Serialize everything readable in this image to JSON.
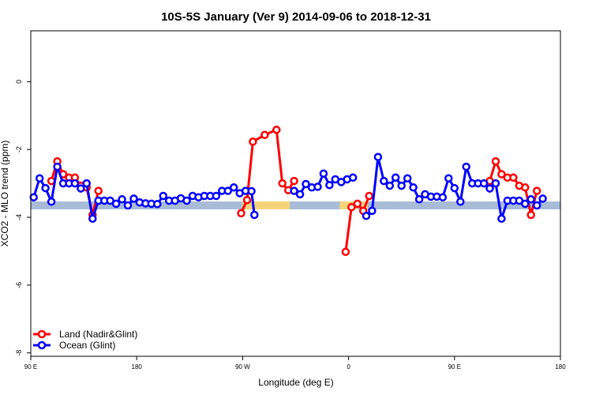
{
  "chart_data": {
    "type": "line",
    "title": "10S-5S January (Ver 9)   2014-09-06 to 2018-12-31",
    "xlabel": "Longitude (deg E)",
    "ylabel": "XCO2 - MLO trend (ppm)",
    "xlim": [
      90,
      450
    ],
    "ylim": [
      -8.1,
      1.5
    ],
    "x_ticks": [
      {
        "value": 90,
        "label": "90 E"
      },
      {
        "value": 162,
        "label": "180"
      },
      {
        "value": 234,
        "label": "90 W"
      },
      {
        "value": 306,
        "label": "0"
      },
      {
        "value": 378,
        "label": "90 E"
      },
      {
        "value": 450,
        "label": "180"
      }
    ],
    "y_ticks": [
      {
        "value": 0,
        "label": "0"
      },
      {
        "value": -2,
        "label": "-2"
      },
      {
        "value": -4,
        "label": "-4"
      },
      {
        "value": -6,
        "label": "-6"
      },
      {
        "value": -8,
        "label": "-8"
      }
    ],
    "legend": {
      "position": "bottom-left",
      "entries": [
        {
          "label": "Land (Nadir&Glint)",
          "color": "#ff0000"
        },
        {
          "label": "Ocean (Glint)",
          "color": "#0000ff"
        }
      ]
    },
    "band": {
      "y": -3.65,
      "color": "#a8bcd8",
      "land_segments": [
        [
          234,
          266
        ],
        [
          300,
          312
        ],
        [
          315,
          319
        ]
      ],
      "land_color": "#f5d47a"
    },
    "series": [
      {
        "name": "Land (Nadir&Glint)",
        "color": "#ff0000",
        "segments": [
          [
            [
              104,
              -2.93
            ],
            [
              108,
              -2.35
            ],
            [
              112,
              -2.73
            ],
            [
              116,
              -2.83
            ],
            [
              120,
              -2.83
            ],
            [
              124,
              -3.07
            ],
            [
              128,
              -3.12
            ],
            [
              132,
              -3.93
            ],
            [
              136,
              -3.22
            ]
          ],
          [
            [
              233,
              -3.88
            ],
            [
              237,
              -3.49
            ],
            [
              241,
              -1.77
            ],
            [
              249,
              -1.57
            ],
            [
              257,
              -1.42
            ],
            [
              261,
              -3.0
            ],
            [
              265,
              -3.2
            ],
            [
              269,
              -2.93
            ]
          ],
          [
            [
              304,
              -5.02
            ],
            [
              308,
              -3.7
            ],
            [
              312,
              -3.6
            ],
            [
              316,
              -3.81
            ],
            [
              320,
              -3.37
            ]
          ],
          [
            [
              402,
              -2.93
            ],
            [
              406,
              -2.35
            ],
            [
              410,
              -2.73
            ],
            [
              414,
              -2.83
            ],
            [
              418,
              -2.83
            ],
            [
              422,
              -3.07
            ],
            [
              426,
              -3.12
            ],
            [
              430,
              -3.93
            ],
            [
              434,
              -3.22
            ]
          ]
        ]
      },
      {
        "name": "Ocean (Glint)",
        "color": "#0000ff",
        "segments": [
          [
            [
              92,
              -3.41
            ],
            [
              96,
              -2.85
            ],
            [
              100,
              -3.14
            ],
            [
              104,
              -3.54
            ],
            [
              108,
              -2.51
            ],
            [
              112,
              -3.0
            ],
            [
              116,
              -3.0
            ],
            [
              120,
              -3.0
            ],
            [
              124,
              -3.15
            ],
            [
              128,
              -3.0
            ],
            [
              132,
              -4.04
            ],
            [
              136,
              -3.51
            ],
            [
              140,
              -3.51
            ],
            [
              144,
              -3.51
            ],
            [
              148,
              -3.6
            ],
            [
              152,
              -3.47
            ],
            [
              156,
              -3.65
            ],
            [
              160,
              -3.45
            ],
            [
              164,
              -3.56
            ],
            [
              168,
              -3.59
            ],
            [
              172,
              -3.6
            ],
            [
              176,
              -3.61
            ],
            [
              180,
              -3.37
            ],
            [
              184,
              -3.51
            ],
            [
              188,
              -3.51
            ],
            [
              192,
              -3.44
            ],
            [
              196,
              -3.51
            ],
            [
              200,
              -3.37
            ],
            [
              204,
              -3.41
            ],
            [
              208,
              -3.37
            ],
            [
              212,
              -3.37
            ],
            [
              216,
              -3.37
            ],
            [
              220,
              -3.22
            ],
            [
              224,
              -3.22
            ],
            [
              228,
              -3.12
            ],
            [
              232,
              -3.29
            ],
            [
              236,
              -3.22
            ],
            [
              240,
              -3.23
            ],
            [
              242,
              -3.93
            ]
          ],
          [
            [
              269,
              -3.22
            ],
            [
              273,
              -3.32
            ],
            [
              277,
              -3.02
            ],
            [
              281,
              -3.12
            ],
            [
              285,
              -3.1
            ],
            [
              289,
              -2.71
            ],
            [
              293,
              -3.05
            ],
            [
              297,
              -2.88
            ],
            [
              301,
              -2.96
            ],
            [
              305,
              -2.88
            ],
            [
              309,
              -2.83
            ]
          ],
          [
            [
              318,
              -3.96
            ],
            [
              322,
              -3.81
            ],
            [
              326,
              -2.22
            ],
            [
              330,
              -2.93
            ],
            [
              334,
              -3.07
            ],
            [
              338,
              -2.83
            ],
            [
              342,
              -3.07
            ],
            [
              346,
              -2.85
            ],
            [
              350,
              -3.12
            ],
            [
              354,
              -3.47
            ],
            [
              358,
              -3.32
            ],
            [
              362,
              -3.39
            ],
            [
              366,
              -3.39
            ],
            [
              370,
              -3.41
            ],
            [
              374,
              -2.85
            ],
            [
              378,
              -3.14
            ],
            [
              382,
              -3.54
            ],
            [
              386,
              -2.51
            ],
            [
              390,
              -3.0
            ],
            [
              394,
              -3.0
            ],
            [
              398,
              -3.0
            ],
            [
              402,
              -3.15
            ],
            [
              406,
              -3.0
            ],
            [
              410,
              -4.04
            ],
            [
              414,
              -3.51
            ],
            [
              418,
              -3.51
            ],
            [
              422,
              -3.51
            ],
            [
              426,
              -3.6
            ],
            [
              430,
              -3.47
            ],
            [
              434,
              -3.65
            ],
            [
              438,
              -3.45
            ]
          ]
        ]
      }
    ]
  }
}
